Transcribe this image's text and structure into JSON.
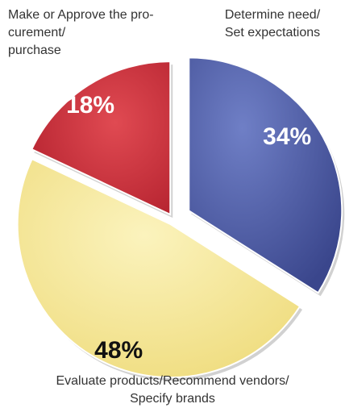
{
  "chart_data": {
    "type": "pie",
    "slices": [
      {
        "label": "Determine need/ Set expectations",
        "label_lines": [
          "Determine need/",
          "Set expectations"
        ],
        "value": 34,
        "display": "34%",
        "color": "#4a5aa6",
        "text_color": "#ffffff",
        "exploded": true
      },
      {
        "label": "Evaluate products/Recommend vendors/ Specify brands",
        "label_lines": [
          "Evaluate products/Recommend vendors/",
          "Specify brands"
        ],
        "value": 48,
        "display": "48%",
        "color": "#f2e48e",
        "text_color": "#111111",
        "exploded": false
      },
      {
        "label": "Make or Approve the procurement/ purchase",
        "label_lines": [
          "Make or Approve the pro-",
          "curement/",
          "purchase"
        ],
        "value": 18,
        "display": "18%",
        "color": "#cc2f3c",
        "text_color": "#ffffff",
        "exploded": false
      }
    ],
    "title": "",
    "legend": "none"
  }
}
